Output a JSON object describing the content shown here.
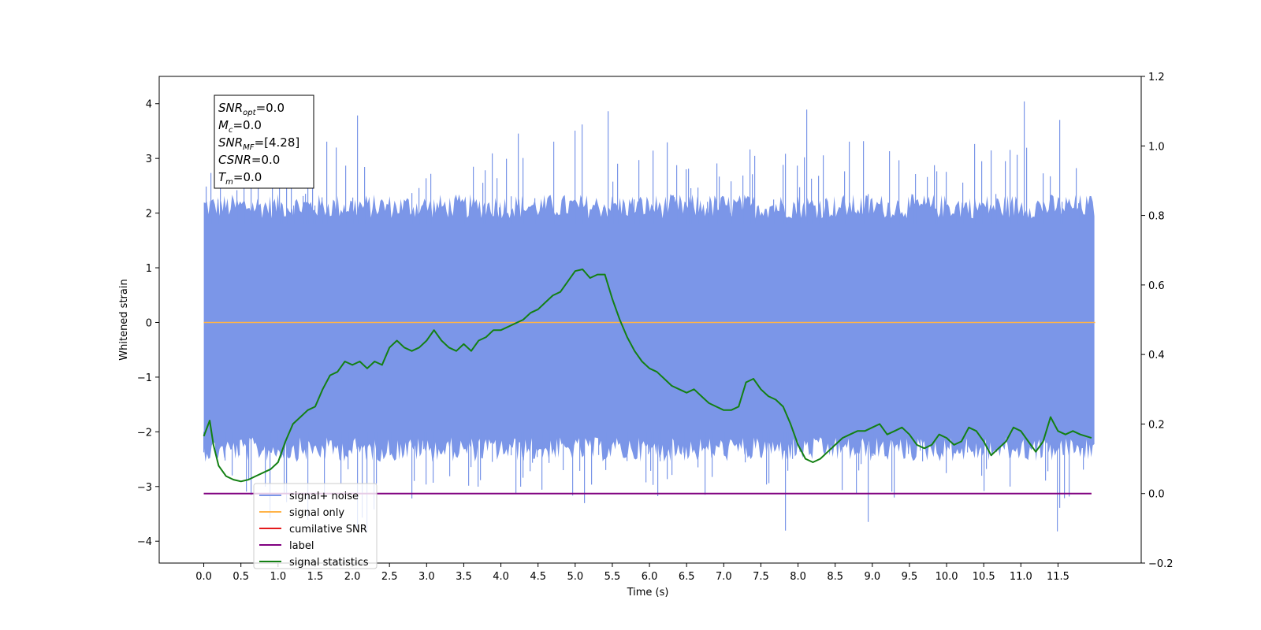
{
  "chart_data": {
    "type": "line",
    "xlabel": "Time (s)",
    "ylabel": "Whitened strain",
    "xlim": [
      -0.6,
      12.62
    ],
    "ylim": [
      -4.4,
      4.5
    ],
    "y2lim": [
      -0.2,
      1.2
    ],
    "x_ticks": [
      0.0,
      0.5,
      1.0,
      1.5,
      2.0,
      2.5,
      3.0,
      3.5,
      4.0,
      4.5,
      5.0,
      5.5,
      6.0,
      6.5,
      7.0,
      7.5,
      8.0,
      8.5,
      9.0,
      9.5,
      10.0,
      10.5,
      11.0,
      11.5
    ],
    "x_tick_labels": [
      "0.0",
      "0.5",
      "1.0",
      "1.5",
      "2.0",
      "2.5",
      "3.0",
      "3.5",
      "4.0",
      "4.5",
      "5.0",
      "5.5",
      "6.0",
      "6.5",
      "7.0",
      "7.5",
      "8.0",
      "8.5",
      "9.0",
      "9.5",
      "10.0",
      "10.5",
      "11.0",
      "11.5"
    ],
    "y_ticks": [
      -4,
      -3,
      -2,
      -1,
      0,
      1,
      2,
      3,
      4
    ],
    "y_tick_labels": [
      "−4",
      "−3",
      "−2",
      "−1",
      "0",
      "1",
      "2",
      "3",
      "4"
    ],
    "y2_ticks": [
      -0.2,
      0.0,
      0.2,
      0.4,
      0.6,
      0.8,
      1.0,
      1.2
    ],
    "y2_tick_labels": [
      "−0.2",
      "0.0",
      "0.2",
      "0.4",
      "0.6",
      "0.8",
      "1.0",
      "1.2"
    ],
    "grid": false,
    "legend_position": "lower-left",
    "stats_box": [
      {
        "base": "SNR",
        "sub": "opt",
        "value": "=0.0"
      },
      {
        "base": "M",
        "sub": "c",
        "value": "=0.0"
      },
      {
        "base": "SNR",
        "sub": "MF",
        "value": "=[4.28]"
      },
      {
        "base": "CSNR",
        "sub": "",
        "value": "=0.0"
      },
      {
        "base": "T",
        "sub": "m",
        "value": "=0.0"
      }
    ],
    "series": [
      {
        "name": "signal+ noise",
        "color": "#7b96e8",
        "axis": "left",
        "x_range": [
          0.0,
          12.0
        ],
        "envelope": {
          "typical_low": -2.3,
          "typical_high": 2.1,
          "max": 4.12,
          "min": -3.84
        }
      },
      {
        "name": "signal only",
        "color": "#ffb347",
        "axis": "left",
        "x": [
          0.0,
          12.0
        ],
        "values": [
          0.0,
          0.0
        ]
      },
      {
        "name": "cumilative SNR",
        "color": "#e41a1c",
        "axis": "right",
        "x": [
          0.0,
          11.95
        ],
        "values": [
          0.0,
          0.0
        ]
      },
      {
        "name": "label",
        "color": "#800080",
        "axis": "right",
        "x": [
          0.0,
          11.95
        ],
        "values": [
          0.0,
          0.0
        ]
      },
      {
        "name": "signal statistics",
        "color": "#138013",
        "axis": "right",
        "x": [
          0.0,
          0.08,
          0.13,
          0.2,
          0.3,
          0.4,
          0.5,
          0.6,
          0.7,
          0.8,
          0.9,
          1.0,
          1.1,
          1.2,
          1.3,
          1.4,
          1.5,
          1.6,
          1.7,
          1.8,
          1.9,
          2.0,
          2.1,
          2.2,
          2.3,
          2.4,
          2.5,
          2.6,
          2.7,
          2.8,
          2.9,
          3.0,
          3.1,
          3.2,
          3.3,
          3.4,
          3.5,
          3.6,
          3.7,
          3.8,
          3.9,
          4.0,
          4.1,
          4.2,
          4.3,
          4.4,
          4.5,
          4.6,
          4.7,
          4.8,
          4.9,
          5.0,
          5.1,
          5.2,
          5.3,
          5.4,
          5.5,
          5.6,
          5.7,
          5.8,
          5.9,
          6.0,
          6.1,
          6.2,
          6.3,
          6.4,
          6.5,
          6.6,
          6.7,
          6.8,
          6.9,
          7.0,
          7.1,
          7.2,
          7.3,
          7.4,
          7.5,
          7.6,
          7.7,
          7.8,
          7.9,
          8.0,
          8.1,
          8.2,
          8.3,
          8.4,
          8.5,
          8.6,
          8.7,
          8.8,
          8.9,
          9.0,
          9.1,
          9.2,
          9.3,
          9.4,
          9.5,
          9.6,
          9.7,
          9.8,
          9.9,
          10.0,
          10.1,
          10.2,
          10.3,
          10.4,
          10.5,
          10.6,
          10.7,
          10.8,
          10.9,
          11.0,
          11.1,
          11.2,
          11.3,
          11.4,
          11.5,
          11.6,
          11.7,
          11.8,
          11.95
        ],
        "values": [
          0.165,
          0.21,
          0.14,
          0.08,
          0.05,
          0.04,
          0.035,
          0.04,
          0.05,
          0.06,
          0.07,
          0.09,
          0.15,
          0.2,
          0.22,
          0.24,
          0.25,
          0.3,
          0.34,
          0.35,
          0.38,
          0.37,
          0.38,
          0.36,
          0.38,
          0.37,
          0.42,
          0.44,
          0.42,
          0.41,
          0.42,
          0.44,
          0.47,
          0.44,
          0.42,
          0.41,
          0.43,
          0.41,
          0.44,
          0.45,
          0.47,
          0.47,
          0.48,
          0.49,
          0.5,
          0.52,
          0.53,
          0.55,
          0.57,
          0.58,
          0.61,
          0.64,
          0.645,
          0.62,
          0.63,
          0.63,
          0.56,
          0.5,
          0.45,
          0.41,
          0.38,
          0.36,
          0.35,
          0.33,
          0.31,
          0.3,
          0.29,
          0.3,
          0.28,
          0.26,
          0.25,
          0.24,
          0.24,
          0.25,
          0.32,
          0.33,
          0.3,
          0.28,
          0.27,
          0.25,
          0.2,
          0.14,
          0.1,
          0.09,
          0.1,
          0.12,
          0.14,
          0.16,
          0.17,
          0.18,
          0.18,
          0.19,
          0.2,
          0.17,
          0.18,
          0.19,
          0.17,
          0.14,
          0.13,
          0.14,
          0.17,
          0.16,
          0.14,
          0.15,
          0.19,
          0.18,
          0.15,
          0.11,
          0.13,
          0.15,
          0.19,
          0.18,
          0.15,
          0.12,
          0.15,
          0.22,
          0.18,
          0.17,
          0.18,
          0.17,
          0.16
        ]
      }
    ]
  }
}
